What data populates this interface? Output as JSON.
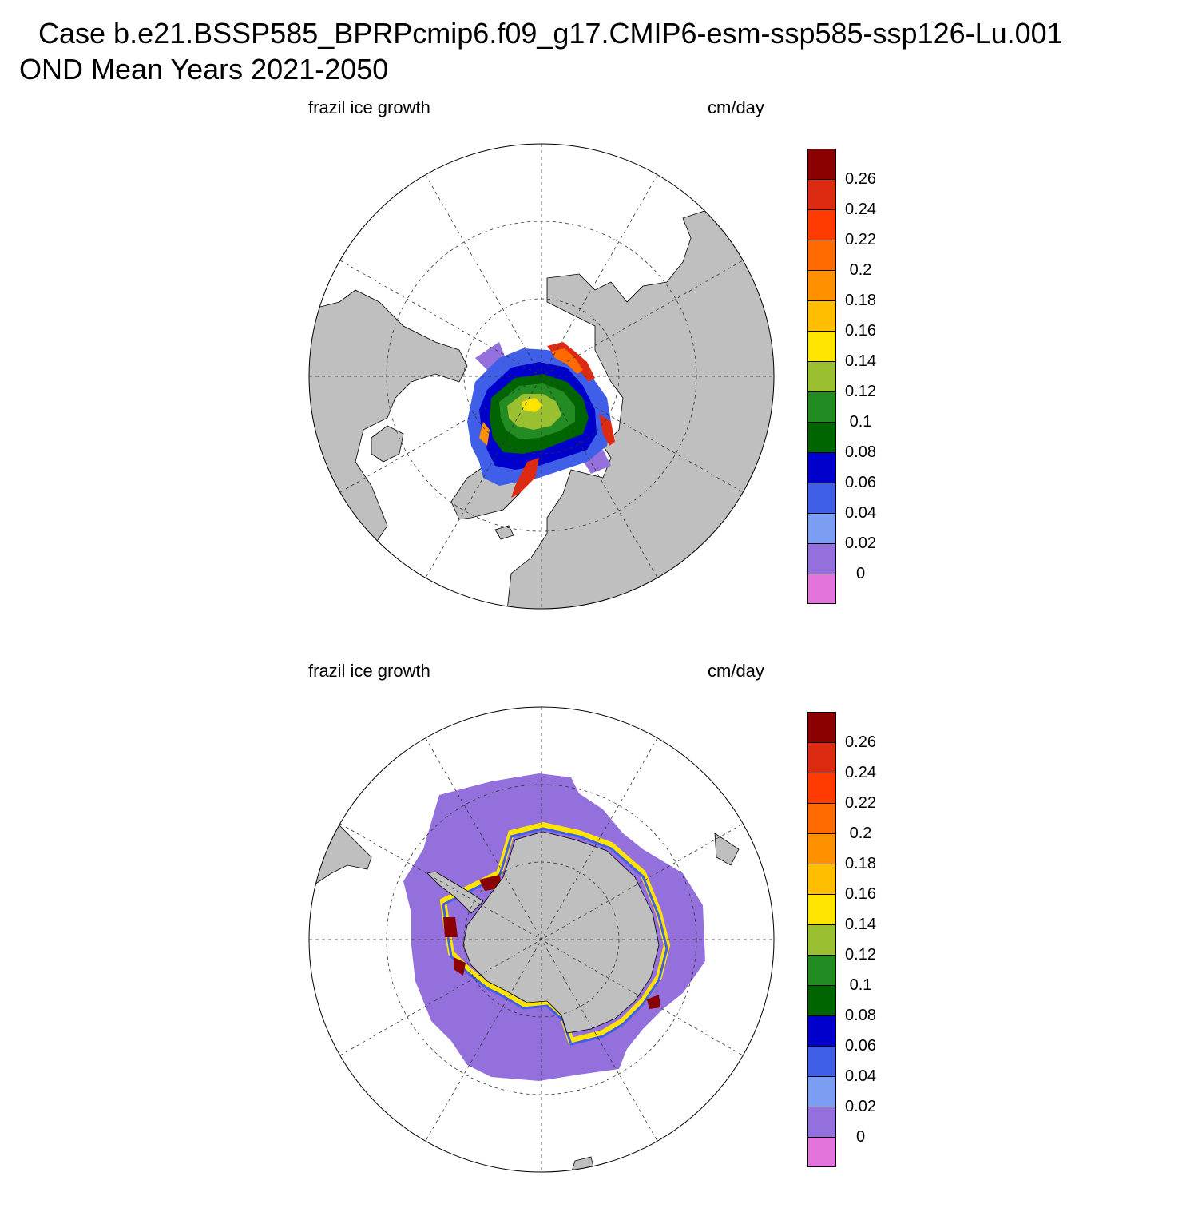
{
  "title_line1": "Case b.e21.BSSP585_BPRPcmip6.f09_g17.CMIP6-esm-ssp585-ssp126-Lu.001",
  "title_line2": "OND Mean   Years 2021-2050",
  "panels": [
    {
      "hemisphere": "north",
      "left_title": "frazil ice growth",
      "right_title": "cm/day"
    },
    {
      "hemisphere": "south",
      "left_title": "frazil ice growth",
      "right_title": "cm/day"
    }
  ],
  "colorbar": {
    "labels": [
      "0.26",
      "0.24",
      "0.22",
      "0.2",
      "0.18",
      "0.16",
      "0.14",
      "0.12",
      "0.1",
      "0.08",
      "0.06",
      "0.04",
      "0.02",
      "0"
    ],
    "colors": [
      "#8b0000",
      "#dd2a12",
      "#ff3a00",
      "#ff6b00",
      "#ff9100",
      "#ffbe00",
      "#ffe400",
      "#9abf31",
      "#228b22",
      "#006400",
      "#0000cd",
      "#3f5fe8",
      "#7b9df2",
      "#9370db",
      "#e274dc"
    ]
  },
  "colors": {
    "land": "#bfbfbf",
    "ocean": "#ffffff"
  }
}
